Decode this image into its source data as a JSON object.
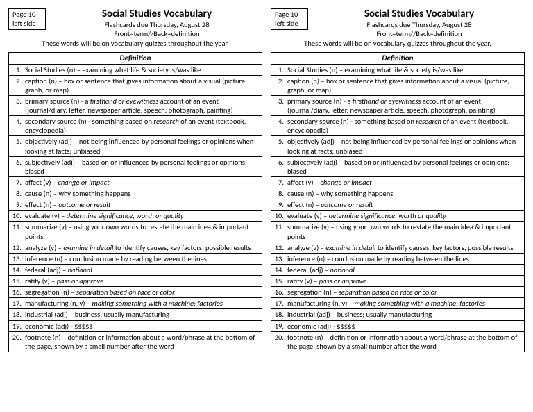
{
  "page_label_line1": "Page 10 –",
  "page_label_line2": "left side",
  "title": "Social Studies Vocabulary",
  "subtitle1": "Flashcards due Thursday, August 28",
  "subtitle2": "Front=term//Back=definition",
  "note": "These words will be on vocabulary quizzes throughout the year.",
  "table_header": "Definition",
  "rows": [
    {
      "n": "1.",
      "html": "Social Studies (n) – examining what life & society is/was like"
    },
    {
      "n": "2.",
      "html": "caption (n) – box or sentence that gives information about a visual (picture, graph, or map)"
    },
    {
      "n": "3.",
      "html": "primary source (n) - a <i>firsthand or eyewitness</i> account of an event (journal/diary, letter, newspaper article, speech, photograph, painting)"
    },
    {
      "n": "4.",
      "html": "secondary source (n) - something based on <i>research</i> of an event (textbook, encyclopedia)"
    },
    {
      "n": "5.",
      "html": "objectively (adj) – not being influenced by personal feelings or opinions when looking at facts; unbiased"
    },
    {
      "n": "6.",
      "html": "subjectively (adj) – based on or influenced by personal feelings or opinions; biased"
    },
    {
      "n": "7.",
      "html": "affect (v) – <i>change or impact</i>"
    },
    {
      "n": "8.",
      "html": "cause (n) – why something happens"
    },
    {
      "n": "9.",
      "html": "effect (n) – <i>outcome or result</i>"
    },
    {
      "n": "10.",
      "html": "evaluate (v) – <i>determine significance, worth or quality</i>"
    },
    {
      "n": "11.",
      "html": "summarize (v) – using your own words to restate the main idea & important points"
    },
    {
      "n": "12.",
      "html": "analyze (v) – <i>examine in detail</i> to identify causes, key factors, possible results"
    },
    {
      "n": "13.",
      "html": "inference (n) – conclusion made by reading between the lines"
    },
    {
      "n": "14.",
      "html": "federal (adj) – <i>national</i>"
    },
    {
      "n": "15.",
      "html": "ratify (v) – <i>pass or approve</i>"
    },
    {
      "n": "16.",
      "html": "segregation (n) – <i>separation based on race or color</i>"
    },
    {
      "n": "17.",
      "html": "manufacturing (n, v) –  <i>making something with a machine; factories</i>"
    },
    {
      "n": "18.",
      "html": "industrial (adj) – business; usually manufacturing"
    },
    {
      "n": "19.",
      "html": "economic (adj) -  $$$$$"
    },
    {
      "n": "20.",
      "html": "footnote (n) – definition or information about a word/phrase at the bottom of the page, shown by a small number after the word"
    }
  ]
}
